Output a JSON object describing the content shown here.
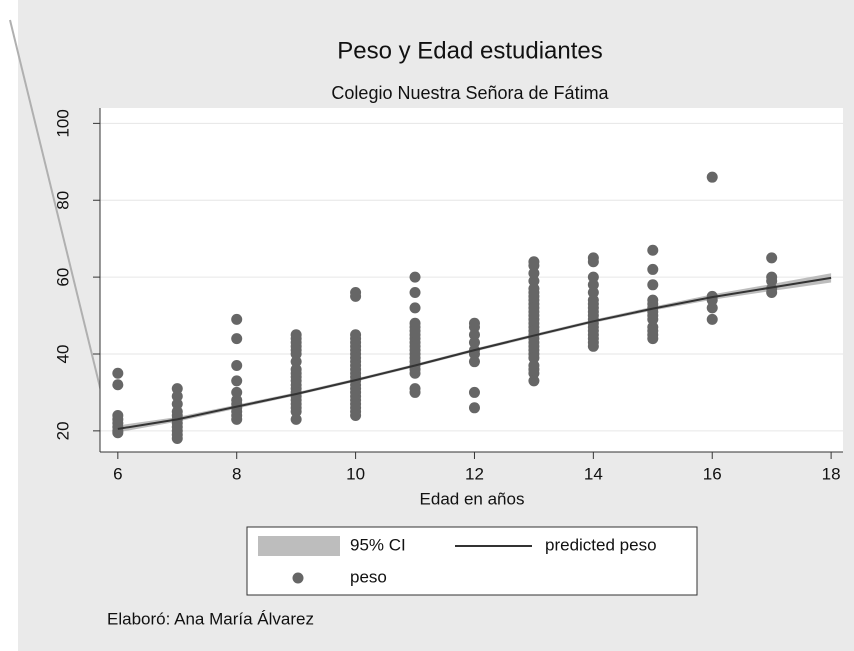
{
  "chart_data": {
    "type": "scatter",
    "title": "Peso y Edad estudiantes",
    "subtitle": "Colegio Nuestra Señora de Fátima",
    "x_label": "Edad en años",
    "note": "Elaboró: Ana María Álvarez",
    "xlim": [
      5.7,
      18.2
    ],
    "ylim": [
      14.5,
      104
    ],
    "xticks": [
      6,
      8,
      10,
      12,
      14,
      16,
      18
    ],
    "yticks": [
      20,
      40,
      60,
      80,
      100
    ],
    "grid": true,
    "legend": "bottom",
    "series": [
      {
        "name": "95% CI",
        "type": "area",
        "color": "#bdbdbd",
        "x": [
          6,
          7,
          8,
          9,
          10,
          11,
          12,
          13,
          14,
          15,
          16,
          17,
          18
        ],
        "lower": [
          19.6,
          22.4,
          25.8,
          29.2,
          32.8,
          36.6,
          40.6,
          44.4,
          48.1,
          51.3,
          54.1,
          56.4,
          58.6
        ],
        "upper": [
          21.4,
          23.6,
          26.8,
          30,
          33.6,
          37.4,
          41.4,
          45.2,
          48.9,
          52.3,
          55.5,
          58.2,
          61
        ]
      },
      {
        "name": "predicted peso",
        "type": "line",
        "color": "#333333",
        "x": [
          6,
          7,
          8,
          9,
          10,
          11,
          12,
          13,
          14,
          15,
          16,
          17,
          18
        ],
        "values": [
          20.5,
          23,
          26.3,
          29.6,
          33.2,
          37,
          41,
          44.8,
          48.5,
          51.8,
          54.8,
          57.3,
          59.8
        ]
      },
      {
        "name": "peso",
        "type": "scatter",
        "color": "#666666",
        "x": [
          6,
          6,
          6,
          6,
          6,
          6,
          6,
          6,
          7,
          7,
          7,
          7,
          7,
          7,
          7,
          7,
          7,
          7,
          7,
          8,
          8,
          8,
          8,
          8,
          8,
          8,
          8,
          8,
          8,
          8,
          9,
          9,
          9,
          9,
          9,
          9,
          9,
          9,
          9,
          9,
          9,
          9,
          9,
          9,
          9,
          9,
          9,
          9,
          9,
          9,
          10,
          10,
          10,
          10,
          10,
          10,
          10,
          10,
          10,
          10,
          10,
          10,
          10,
          10,
          10,
          10,
          10,
          10,
          10,
          10,
          10,
          10,
          10,
          10,
          11,
          11,
          11,
          11,
          11,
          11,
          11,
          11,
          11,
          11,
          11,
          11,
          11,
          11,
          11,
          11,
          11,
          11,
          11,
          12,
          12,
          12,
          12,
          12,
          12,
          12,
          12,
          12,
          13,
          13,
          13,
          13,
          13,
          13,
          13,
          13,
          13,
          13,
          13,
          13,
          13,
          13,
          13,
          13,
          13,
          13,
          13,
          13,
          13,
          13,
          13,
          13,
          13,
          13,
          13,
          14,
          14,
          14,
          14,
          14,
          14,
          14,
          14,
          14,
          14,
          14,
          14,
          14,
          14,
          14,
          14,
          14,
          14,
          15,
          15,
          15,
          15,
          15,
          15,
          15,
          15,
          15,
          15,
          15,
          15,
          15,
          16,
          16,
          16,
          16,
          16,
          17,
          17,
          17,
          17,
          17
        ],
        "values": [
          35,
          32,
          24,
          23,
          22,
          21,
          20,
          19.5,
          31,
          29,
          27,
          25,
          24,
          23,
          22,
          21,
          20,
          19,
          18,
          49,
          44,
          37,
          33,
          30,
          28,
          27,
          26,
          25,
          24,
          23,
          45,
          44,
          43,
          42,
          41,
          40,
          38,
          36,
          35,
          34,
          33,
          32,
          31,
          30,
          29,
          28,
          27,
          26,
          25,
          23,
          56,
          55,
          45,
          44,
          43,
          42,
          41,
          40,
          39,
          38,
          37,
          36,
          35,
          34,
          33,
          32,
          31,
          30,
          29,
          28,
          27,
          26,
          25,
          24,
          60,
          56,
          52,
          48,
          47,
          46,
          45,
          44,
          43,
          42,
          41,
          40,
          39,
          38,
          37,
          36,
          35,
          31,
          30,
          48,
          47,
          45,
          43,
          41,
          40,
          38,
          30,
          26,
          64,
          63,
          61,
          59,
          57,
          56,
          55,
          54,
          53,
          52,
          51,
          50,
          49,
          48,
          47,
          46,
          45,
          44,
          43,
          42,
          41,
          40,
          39,
          37,
          36,
          35,
          33,
          65,
          64,
          60,
          58,
          56,
          54,
          53,
          52,
          51,
          50,
          49,
          48,
          47,
          46,
          45,
          44,
          43,
          42,
          67,
          62,
          58,
          54,
          53,
          52,
          51,
          50,
          49,
          47,
          46,
          45,
          44,
          86,
          55,
          54,
          52,
          49,
          65,
          60,
          59,
          57,
          56
        ]
      }
    ]
  }
}
